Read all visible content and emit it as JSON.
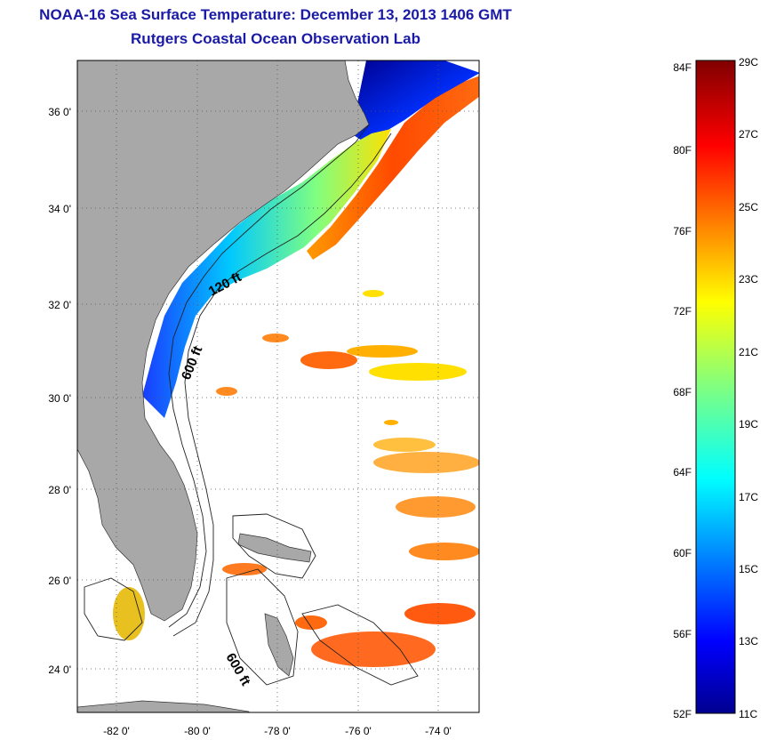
{
  "title": "NOAA-16 Sea Surface Temperature:  December 13, 2013 1406 GMT",
  "subtitle": "Rutgers Coastal Ocean Observation Lab",
  "map": {
    "lat_ticks": [
      "36 0'",
      "34 0'",
      "32 0'",
      "30 0'",
      "28 0'",
      "26 0'",
      "24 0'"
    ],
    "lon_ticks": [
      "-82 0'",
      "-80 0'",
      "-78 0'",
      "-76 0'",
      "-74 0'"
    ],
    "contour_labels": [
      "120 ft",
      "600 ft",
      "600 ft"
    ],
    "land_color": "#a8a8a8",
    "grid": "dotted"
  },
  "colorbar": {
    "fahrenheit_labels": [
      "84F",
      "80F",
      "76F",
      "72F",
      "68F",
      "64F",
      "60F",
      "56F",
      "52F"
    ],
    "celsius_labels": [
      "29C",
      "27C",
      "25C",
      "23C",
      "21C",
      "19C",
      "17C",
      "15C",
      "13C",
      "11C"
    ],
    "min_c": 11,
    "max_c": 29,
    "colormap": "jet"
  }
}
